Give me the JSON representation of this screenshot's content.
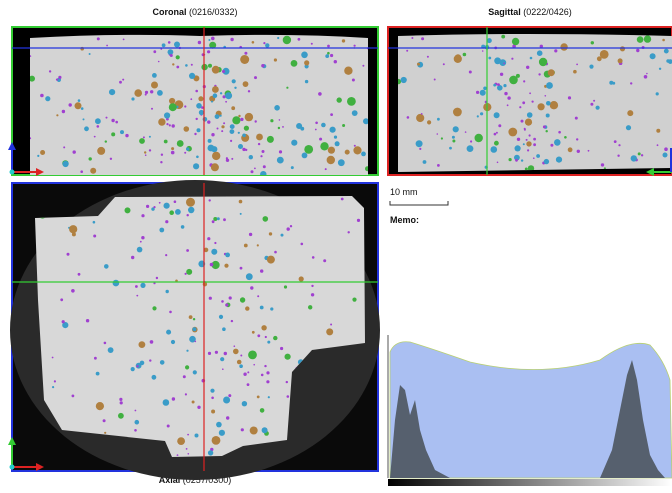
{
  "views": [
    {
      "name": "Coronal",
      "slice": "(0216/0332)"
    },
    {
      "name": "Sagittal",
      "slice": "(0222/0426)"
    },
    {
      "name": "Axial",
      "slice": "(0257/0300)"
    }
  ],
  "scale_bar": "10 mm",
  "memo": "Memo:"
}
